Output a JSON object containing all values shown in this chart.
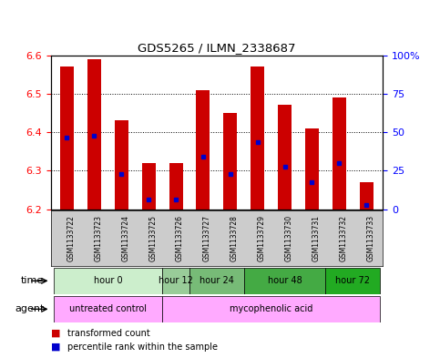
{
  "title": "GDS5265 / ILMN_2338687",
  "samples": [
    "GSM1133722",
    "GSM1133723",
    "GSM1133724",
    "GSM1133725",
    "GSM1133726",
    "GSM1133727",
    "GSM1133728",
    "GSM1133729",
    "GSM1133730",
    "GSM1133731",
    "GSM1133732",
    "GSM1133733"
  ],
  "bar_values": [
    6.57,
    6.59,
    6.43,
    6.32,
    6.32,
    6.51,
    6.45,
    6.57,
    6.47,
    6.41,
    6.49,
    6.27
  ],
  "blue_dot_values": [
    6.385,
    6.39,
    6.29,
    6.225,
    6.225,
    6.335,
    6.29,
    6.375,
    6.31,
    6.27,
    6.32,
    6.21
  ],
  "ylim": [
    6.2,
    6.6
  ],
  "yticks": [
    6.2,
    6.3,
    6.4,
    6.5,
    6.6
  ],
  "right_ytick_labels": [
    "0",
    "25",
    "50",
    "75",
    "100%"
  ],
  "right_yticks": [
    0,
    25,
    50,
    75,
    100
  ],
  "bar_color": "#cc0000",
  "blue_dot_color": "#0000cc",
  "bar_bottom": 6.2,
  "bar_width": 0.5,
  "time_group_data": [
    {
      "label": "hour 0",
      "start": 0,
      "end": 3,
      "color": "#cceecc"
    },
    {
      "label": "hour 12",
      "start": 4,
      "end": 4,
      "color": "#99cc99"
    },
    {
      "label": "hour 24",
      "start": 5,
      "end": 6,
      "color": "#77bb77"
    },
    {
      "label": "hour 48",
      "start": 7,
      "end": 9,
      "color": "#44aa44"
    },
    {
      "label": "hour 72",
      "start": 10,
      "end": 11,
      "color": "#22aa22"
    }
  ],
  "agent_group_data": [
    {
      "label": "untreated control",
      "start": 0,
      "end": 3,
      "color": "#ffaaff"
    },
    {
      "label": "mycophenolic acid",
      "start": 4,
      "end": 11,
      "color": "#ffaaff"
    }
  ],
  "legend_items": [
    {
      "label": "transformed count",
      "color": "#cc0000",
      "marker": "s"
    },
    {
      "label": "percentile rank within the sample",
      "color": "#0000cc",
      "marker": "s"
    }
  ],
  "sample_bg_color": "#cccccc",
  "plot_bg": "#ffffff",
  "outer_bg": "#ffffff"
}
